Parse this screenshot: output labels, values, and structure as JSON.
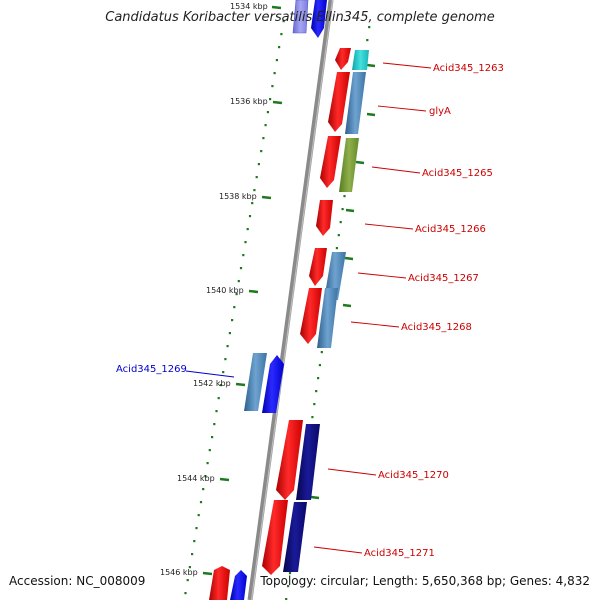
{
  "title": "Candidatus Koribacter versatilis Ellin345, complete genome",
  "footer": {
    "accession": "Accession: NC_008009",
    "stats": "Topology: circular; Length: 5,650,368 bp; Genes: 4,832"
  },
  "scale": {
    "labels": [
      "1534 kbp",
      "1536 kbp",
      "1538 kbp",
      "1540 kbp",
      "1542 kbp",
      "1544 kbp",
      "1546 kbp"
    ]
  },
  "genes": [
    {
      "name": "Acid345_1263",
      "color": "#cc0000"
    },
    {
      "name": "glyA",
      "color": "#cc0000"
    },
    {
      "name": "Acid345_1265",
      "color": "#cc0000"
    },
    {
      "name": "Acid345_1266",
      "color": "#cc0000"
    },
    {
      "name": "Acid345_1267",
      "color": "#cc0000"
    },
    {
      "name": "Acid345_1268",
      "color": "#cc0000"
    },
    {
      "name": "Acid345_1269",
      "color": "#0000cc"
    },
    {
      "name": "Acid345_1270",
      "color": "#cc0000"
    },
    {
      "name": "Acid345_1271",
      "color": "#cc0000"
    }
  ],
  "colors": {
    "backbone": "#8a8a8a",
    "forward_gene": "#ff1a1a",
    "reverse_gene": "#1111ee",
    "cds_steel": "#4f86b8",
    "cds_cyan": "#22cccc",
    "cds_olive": "#77993a",
    "cds_navy": "#0b0b77",
    "tick": "#1f7a1f"
  }
}
